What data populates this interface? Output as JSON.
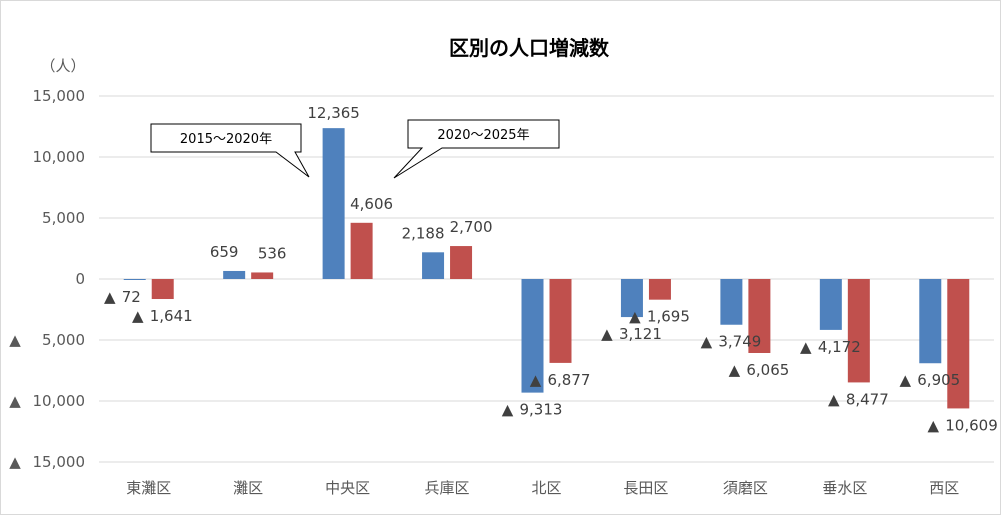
{
  "chart_data": {
    "type": "bar",
    "title": "区別の人口増減数",
    "ylabel": "（人）",
    "ylim": [
      -15000,
      15000
    ],
    "ytick_values": [
      15000,
      10000,
      5000,
      0,
      -5000,
      -10000,
      -15000
    ],
    "ytick_labels": [
      "15,000",
      "10,000",
      "5,000",
      "0",
      "5,000",
      "10,000",
      "15,000"
    ],
    "negative_marker": "▲",
    "grid": true,
    "categories": [
      "東灘区",
      "灘区",
      "中央区",
      "兵庫区",
      "北区",
      "長田区",
      "須磨区",
      "垂水区",
      "西区"
    ],
    "series": [
      {
        "name": "2015～2020年",
        "color": "#4f81bd",
        "values": [
          -72,
          659,
          12365,
          2188,
          -9313,
          -3121,
          -3749,
          -4172,
          -6905
        ],
        "labels": [
          "72",
          "659",
          "12,365",
          "2,188",
          "9,313",
          "3,121",
          "3,749",
          "4,172",
          "6,905"
        ]
      },
      {
        "name": "2020～2025年",
        "color": "#c0504d",
        "values": [
          -1641,
          536,
          4606,
          2700,
          -6877,
          -1695,
          -6065,
          -8477,
          -10609
        ],
        "labels": [
          "1,641",
          "536",
          "4,606",
          "2,700",
          "6,877",
          "1,695",
          "6,065",
          "8,477",
          "10,609"
        ]
      }
    ]
  }
}
